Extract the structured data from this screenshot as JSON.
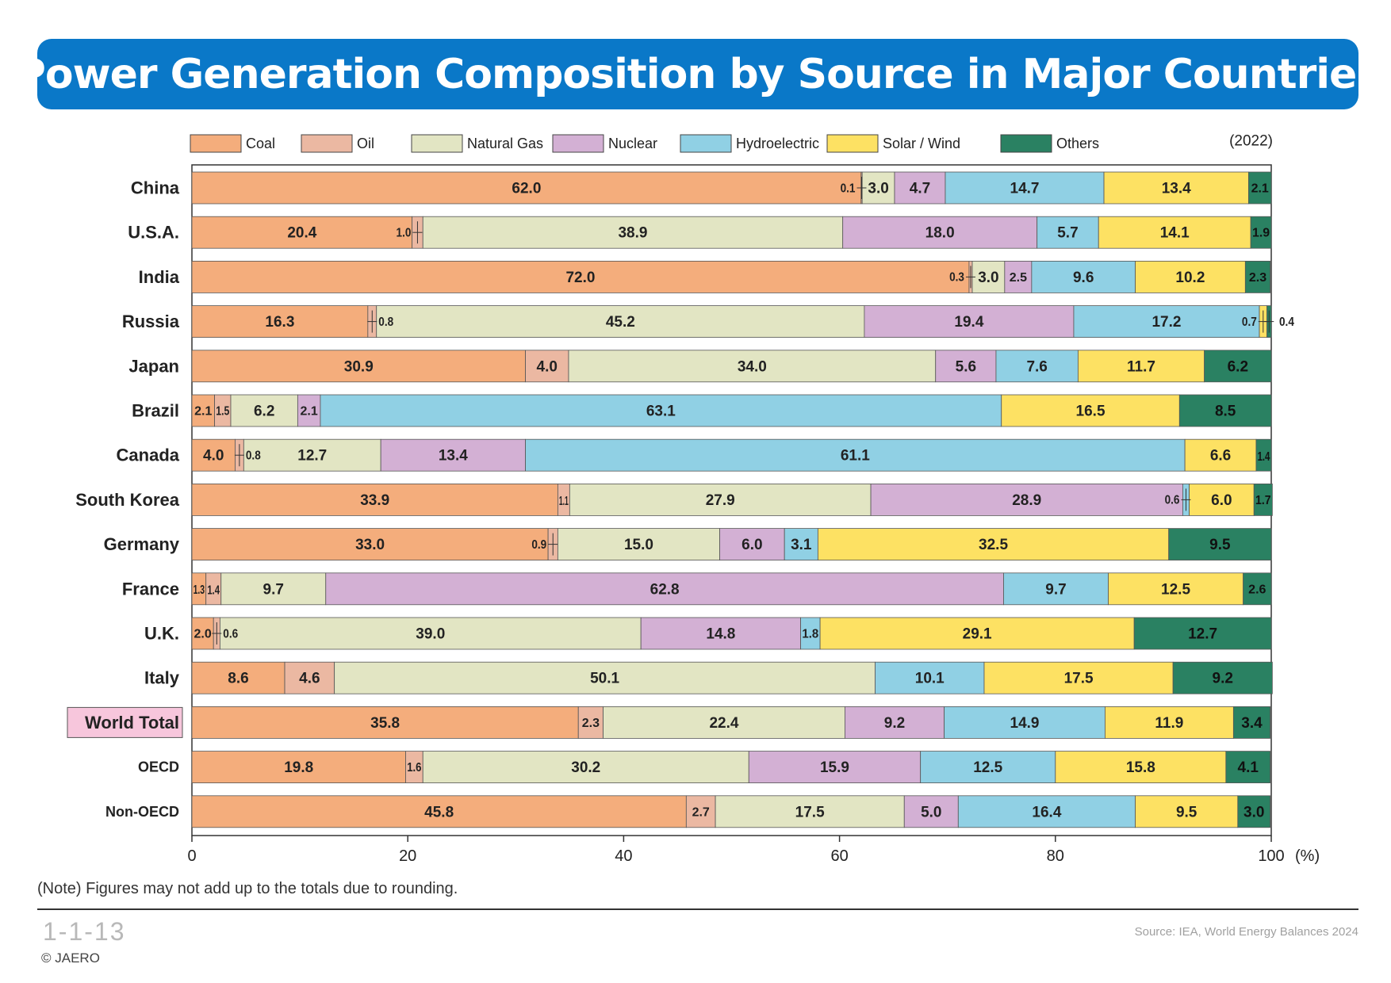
{
  "header": {
    "title": "Power Generation Composition by Source in Major Countries"
  },
  "chart_data": {
    "type": "bar",
    "orientation": "horizontal",
    "stacked": true,
    "year_label": "(2022)",
    "unit_label": "(%)",
    "xlim": [
      0,
      100
    ],
    "x_ticks": [
      "0",
      "20",
      "40",
      "60",
      "80",
      "100"
    ],
    "legend_position": "top",
    "sources": [
      {
        "name": "Coal",
        "color": "#f4ad7c"
      },
      {
        "name": "Oil",
        "color": "#ebb8a2"
      },
      {
        "name": "Natural Gas",
        "color": "#e2e5c3"
      },
      {
        "name": "Nuclear",
        "color": "#d3b0d4"
      },
      {
        "name": "Hydroelectric",
        "color": "#90d0e4"
      },
      {
        "name": "Solar / Wind",
        "color": "#fde163"
      },
      {
        "name": "Others",
        "color": "#2a8162"
      }
    ],
    "categories": [
      "China",
      "U.S.A.",
      "India",
      "Russia",
      "Japan",
      "Brazil",
      "Canada",
      "South Korea",
      "Germany",
      "France",
      "U.K.",
      "Italy",
      "World Total",
      "OECD",
      "Non-OECD"
    ],
    "rows": [
      {
        "values": [
          62.0,
          0.1,
          3.0,
          4.7,
          14.7,
          13.4,
          2.1
        ],
        "labels": [
          "62.0",
          "0.1",
          "3.0",
          "4.7",
          "14.7",
          "13.4",
          "2.1"
        ]
      },
      {
        "values": [
          20.4,
          1.0,
          38.9,
          18.0,
          5.7,
          14.1,
          1.9
        ],
        "labels": [
          "20.4",
          "1.0",
          "38.9",
          "18.0",
          "5.7",
          "14.1",
          "1.9"
        ]
      },
      {
        "values": [
          72.0,
          0.3,
          3.0,
          2.5,
          9.6,
          10.2,
          2.3
        ],
        "labels": [
          "72.0",
          "0.3",
          "3.0",
          "2.5",
          "9.6",
          "10.2",
          "2.3"
        ]
      },
      {
        "values": [
          16.3,
          0.8,
          45.2,
          19.4,
          17.2,
          0.7,
          0.4
        ],
        "labels": [
          "16.3",
          "0.8",
          "45.2",
          "19.4",
          "17.2",
          "0.7",
          "0.4"
        ]
      },
      {
        "values": [
          30.9,
          4.0,
          34.0,
          5.6,
          7.6,
          11.7,
          6.2
        ],
        "labels": [
          "30.9",
          "4.0",
          "34.0",
          "5.6",
          "7.6",
          "11.7",
          "6.2"
        ]
      },
      {
        "values": [
          2.1,
          1.5,
          6.2,
          2.1,
          63.1,
          16.5,
          8.5
        ],
        "labels": [
          "2.1",
          "1.5",
          "6.2",
          "2.1",
          "63.1",
          "16.5",
          "8.5"
        ]
      },
      {
        "values": [
          4.0,
          0.8,
          12.7,
          13.4,
          61.1,
          6.6,
          1.4
        ],
        "labels": [
          "4.0",
          "0.8",
          "12.7",
          "13.4",
          "61.1",
          "6.6",
          "1.4"
        ]
      },
      {
        "values": [
          33.9,
          1.1,
          27.9,
          28.9,
          0.6,
          6.0,
          1.7
        ],
        "labels": [
          "33.9",
          "1.1",
          "27.9",
          "28.9",
          "0.6",
          "6.0",
          "1.7"
        ]
      },
      {
        "values": [
          33.0,
          0.9,
          15.0,
          6.0,
          3.1,
          32.5,
          9.5
        ],
        "labels": [
          "33.0",
          "0.9",
          "15.0",
          "6.0",
          "3.1",
          "32.5",
          "9.5"
        ]
      },
      {
        "values": [
          1.3,
          1.4,
          9.7,
          62.8,
          9.7,
          12.5,
          2.6
        ],
        "labels": [
          "1.3",
          "1.4",
          "9.7",
          "62.8",
          "9.7",
          "12.5",
          "2.6"
        ]
      },
      {
        "values": [
          2.0,
          0.6,
          39.0,
          14.8,
          1.8,
          29.1,
          12.7
        ],
        "labels": [
          "2.0",
          "0.6",
          "39.0",
          "14.8",
          "1.8",
          "29.1",
          "12.7"
        ]
      },
      {
        "values": [
          8.6,
          4.6,
          50.1,
          0,
          10.1,
          17.5,
          9.2
        ],
        "labels": [
          "8.6",
          "4.6",
          "50.1",
          "",
          "10.1",
          "17.5",
          "9.2"
        ]
      },
      {
        "values": [
          35.8,
          2.3,
          22.4,
          9.2,
          14.9,
          11.9,
          3.4
        ],
        "labels": [
          "35.8",
          "2.3",
          "22.4",
          "9.2",
          "14.9",
          "11.9",
          "3.4"
        ]
      },
      {
        "values": [
          19.8,
          1.6,
          30.2,
          15.9,
          12.5,
          15.8,
          4.1
        ],
        "labels": [
          "19.8",
          "1.6",
          "30.2",
          "15.9",
          "12.5",
          "15.8",
          "4.1"
        ]
      },
      {
        "values": [
          45.8,
          2.7,
          17.5,
          5.0,
          16.4,
          9.5,
          3.0
        ],
        "labels": [
          "45.8",
          "2.7",
          "17.5",
          "5.0",
          "16.4",
          "9.5",
          "3.0"
        ]
      }
    ],
    "highlighted_category": "World Total",
    "highlight_color": "#f7c6dc"
  },
  "footer": {
    "note": "(Note) Figures may not add up to the totals due to rounding.",
    "figure_code": "1-1-13",
    "source": "Source: IEA, World Energy Balances 2024",
    "copyright": "© JAERO"
  }
}
